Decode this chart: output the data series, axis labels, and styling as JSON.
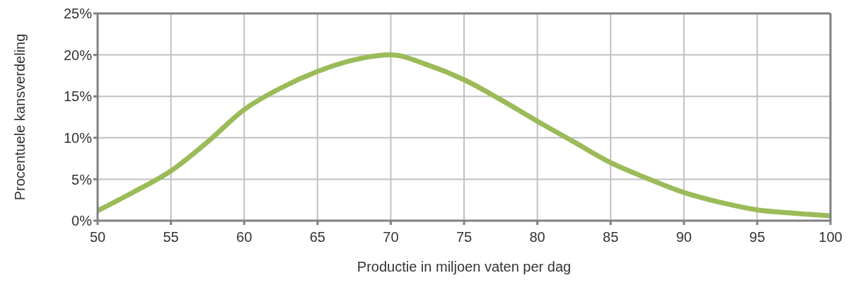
{
  "chart_data": {
    "type": "line",
    "xlabel": "Productie in miljoen vaten per dag",
    "ylabel": "Procentuele kansverdeling",
    "x": [
      50,
      52.5,
      55,
      57.5,
      60,
      62.5,
      65,
      67.5,
      70,
      72.5,
      75,
      77.5,
      80,
      82.5,
      85,
      87.5,
      90,
      92.5,
      95,
      97.5,
      100
    ],
    "series": [
      {
        "color": "#9bbb59",
        "values": [
          1.2,
          3.5,
          6.0,
          9.5,
          13.4,
          16.0,
          18.0,
          19.4,
          20.0,
          18.8,
          17.0,
          14.6,
          12.0,
          9.5,
          7.0,
          5.1,
          3.4,
          2.2,
          1.3,
          0.9,
          0.6
        ]
      }
    ],
    "xlim": [
      50,
      100
    ],
    "xticks": [
      50,
      55,
      60,
      65,
      70,
      75,
      80,
      85,
      90,
      95,
      100
    ],
    "ylim": [
      0,
      25
    ],
    "yticks": [
      {
        "value": 0,
        "label": "0%"
      },
      {
        "value": 5,
        "label": "5%"
      },
      {
        "value": 10,
        "label": "10%"
      },
      {
        "value": 15,
        "label": "15%"
      },
      {
        "value": 20,
        "label": "20%"
      },
      {
        "value": 25,
        "label": "25%"
      }
    ],
    "grid": true,
    "marker": "none",
    "line_style": "solid",
    "legend": false
  }
}
